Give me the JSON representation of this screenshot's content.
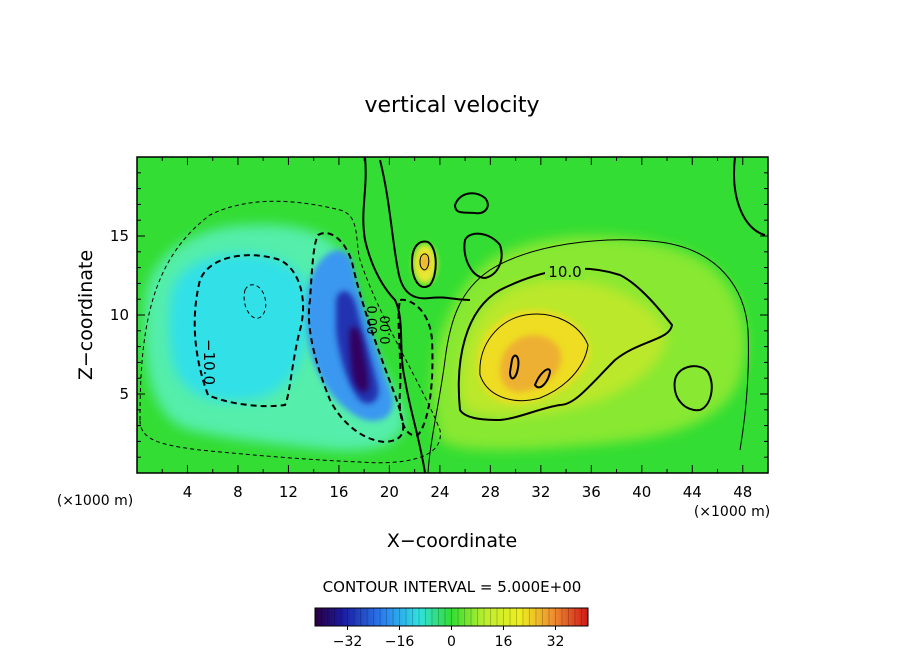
{
  "chart_data": {
    "type": "heatmap",
    "title": "vertical velocity",
    "xlabel": "X−coordinate",
    "ylabel": "Z−coordinate",
    "x_unit": "(×1000 m)",
    "y_unit": "(×1000 m)",
    "xlim": [
      0,
      50
    ],
    "ylim": [
      0,
      20
    ],
    "x_ticks": [
      4,
      8,
      12,
      16,
      20,
      24,
      28,
      32,
      36,
      40,
      44,
      48
    ],
    "y_ticks": [
      5,
      10,
      15
    ],
    "contour_interval_text": "CONTOUR INTERVAL = 5.000E+00",
    "contour_labels": [
      {
        "text": "10.0",
        "x": 33,
        "y": 12.5
      },
      {
        "text": "−10.0",
        "x": 5.3,
        "y": 7.8
      },
      {
        "text": "0.00",
        "x": 18.3,
        "y": 8.9
      },
      {
        "text": "0.00",
        "x": 20,
        "y": 8.5
      }
    ],
    "colorbar": {
      "range": [
        -42,
        42
      ],
      "ticks": [
        -32,
        -16,
        0,
        16,
        32
      ],
      "tick_labels": [
        "−32",
        "−16",
        "0",
        "16",
        "32"
      ]
    },
    "features": [
      {
        "type": "updraft",
        "x": 30.5,
        "z": 7.0,
        "peak": 22
      },
      {
        "type": "updraft",
        "x": 23.0,
        "z": 13.0,
        "peak": 14
      },
      {
        "type": "downdraft",
        "x": 17.5,
        "z": 7.5,
        "peak": -40
      },
      {
        "type": "downdraft",
        "x": 8.0,
        "z": 9.0,
        "peak": -16
      }
    ],
    "grid": false,
    "colors": {
      "plot_background": "#33dd33",
      "axis": "#000000"
    }
  }
}
